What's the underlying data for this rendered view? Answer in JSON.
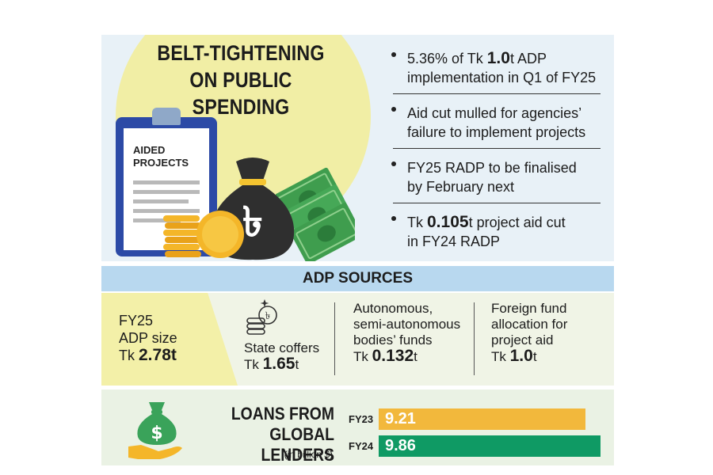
{
  "top": {
    "title_line1": "BELT-TIGHTENING",
    "title_line2": "ON PUBLIC",
    "title_line3": "SPENDING",
    "clipboard_line1": "AIDED",
    "clipboard_line2": "PROJECTS",
    "bag_icon": "taka-money-bag-icon",
    "facts": [
      {
        "pre": "5.36% of Tk ",
        "big": "1.0",
        "post": "t ADP",
        "line2": "implementation in Q1 of FY25"
      },
      {
        "pre": "Aid cut mulled for agencies’",
        "big": "",
        "post": "",
        "line2": "failure to implement projects"
      },
      {
        "pre": "FY25 RADP to be finalised",
        "big": "",
        "post": "",
        "line2": "by February next"
      },
      {
        "pre": "Tk ",
        "big": "0.105",
        "post": "t project aid cut",
        "line2": "in FY24 RADP"
      }
    ]
  },
  "adp": {
    "header": "ADP SOURCES",
    "size_line1": "FY25",
    "size_line2": "ADP size",
    "size_pre": "Tk ",
    "size_value": "2.78t",
    "state_label": "State coffers",
    "state_pre": "Tk ",
    "state_big": "1.65",
    "state_post": "t",
    "auto_line1": "Autonomous,",
    "auto_line2": "semi-autonomous",
    "auto_line3": "bodies’ funds",
    "auto_pre": "Tk ",
    "auto_big": "0.132",
    "auto_post": "t",
    "foreign_line1": "Foreign fund",
    "foreign_line2": "allocation for",
    "foreign_line3": "project aid",
    "foreign_pre": "Tk ",
    "foreign_big": "1.0",
    "foreign_post": "t"
  },
  "loans": {
    "title_line1": "LOANS FROM",
    "title_line2": "GLOBAL LENDERS",
    "subtitle": "(in billion $)",
    "icon": "money-bag-hand-icon"
  },
  "chart_data": {
    "type": "bar",
    "orientation": "horizontal",
    "title": "LOANS FROM GLOBAL LENDERS",
    "subtitle": "(in billion $)",
    "categories": [
      "FY23",
      "FY24"
    ],
    "values": [
      9.21,
      9.86
    ],
    "value_labels": [
      "9.21",
      "9.86"
    ],
    "colors": [
      "#f2b83c",
      "#0f9a64"
    ],
    "xlim": [
      0,
      10.4
    ]
  },
  "colors": {
    "panel_blue": "#e8f1f7",
    "circle_yellow": "#f1eea5",
    "header_blue": "#b8d8ef",
    "clipboard_blue": "#2c4aa6",
    "cash_green": "#3f9d4e",
    "coin_gold": "#f4b629",
    "bag_dark": "#2f2f2f"
  }
}
